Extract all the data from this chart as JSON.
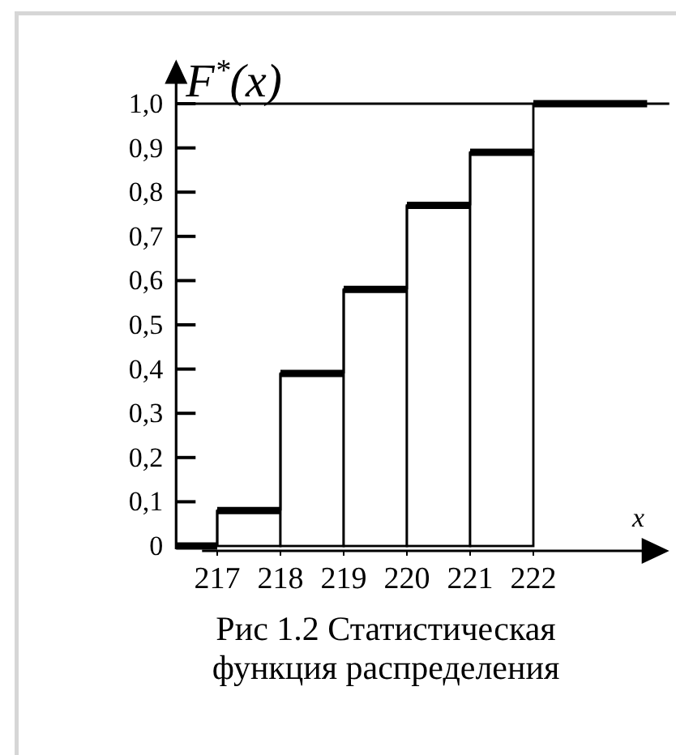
{
  "chart_data": {
    "type": "step",
    "ylabel": "F$^{*}$(x)",
    "xlabel": "x",
    "annotations": [
      "Рис 1.2 Статистическая функция распределения"
    ],
    "series": [
      {
        "type": "bar",
        "x": [
          217.5,
          218.5,
          219.5,
          220.5,
          221.5
        ],
        "values": [
          0.08,
          0.39,
          0.58,
          0.77,
          0.89
        ],
        "color": "#ffffff"
      },
      {
        "x": [
          216.35,
          217,
          218,
          219,
          220,
          221,
          222,
          223.8
        ],
        "values": [
          0,
          0.08,
          0.39,
          0.58,
          0.77,
          0.89,
          1,
          1
        ],
        "color": "#000000"
      }
    ],
    "xlim": [
      216.35,
      224.15
    ],
    "xticks": [
      217,
      218,
      219,
      220,
      221,
      222
    ],
    "ylim": [
      0,
      1.1
    ],
    "yticks": [
      0,
      {
        "value": 0.1,
        "label": "0,1"
      },
      {
        "value": 0.2,
        "label": "0,2"
      },
      {
        "value": 0.3,
        "label": "0,3"
      },
      {
        "value": 0.4,
        "label": "0,4"
      },
      {
        "value": 0.5,
        "label": "0,5"
      },
      {
        "value": 0.6,
        "label": "0,6"
      },
      {
        "value": 0.7,
        "label": "0,7"
      },
      {
        "value": 0.8,
        "label": "0,8"
      },
      {
        "value": 0.9,
        "label": "0,9"
      },
      {
        "value": 1,
        "label": "1,0"
      }
    ],
    "ref_lines": [
      {
        "axis": "y",
        "value": 1
      }
    ]
  }
}
